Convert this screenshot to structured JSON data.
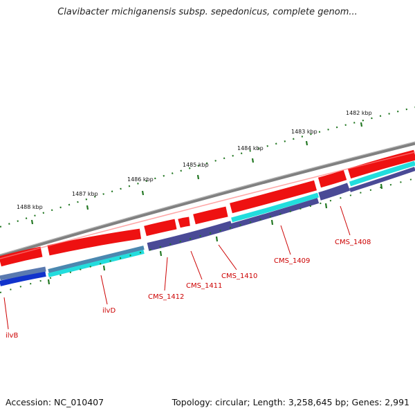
{
  "title": "Clavibacter michiganensis subsp. sepedonicus, complete genom...",
  "accession": "Accession: NC_010407",
  "summary": "Topology: circular; Length: 3,258,645 bp; Genes: 2,991",
  "colors": {
    "backbone": "#808080",
    "forward_gene": "#ee1111",
    "reverse_gene": "#ee1111",
    "cyan_track": "#22dddd",
    "purple_track": "#4a4a96",
    "blue_track": "#1133cc",
    "tick": "#227722",
    "label": "#cc0000"
  },
  "kbp_ticks": [
    {
      "label": "1488 kbp"
    },
    {
      "label": "1487 kbp"
    },
    {
      "label": "1486 kbp"
    },
    {
      "label": "1485 kbp"
    },
    {
      "label": "1484 kbp"
    },
    {
      "label": "1483 kbp"
    },
    {
      "label": "1482 kbp"
    }
  ],
  "genes": [
    {
      "label": "ilvB"
    },
    {
      "label": "ilvD"
    },
    {
      "label": "CMS_1412"
    },
    {
      "label": "CMS_1411"
    },
    {
      "label": "CMS_1410"
    },
    {
      "label": "CMS_1409"
    },
    {
      "label": "CMS_1408"
    }
  ]
}
